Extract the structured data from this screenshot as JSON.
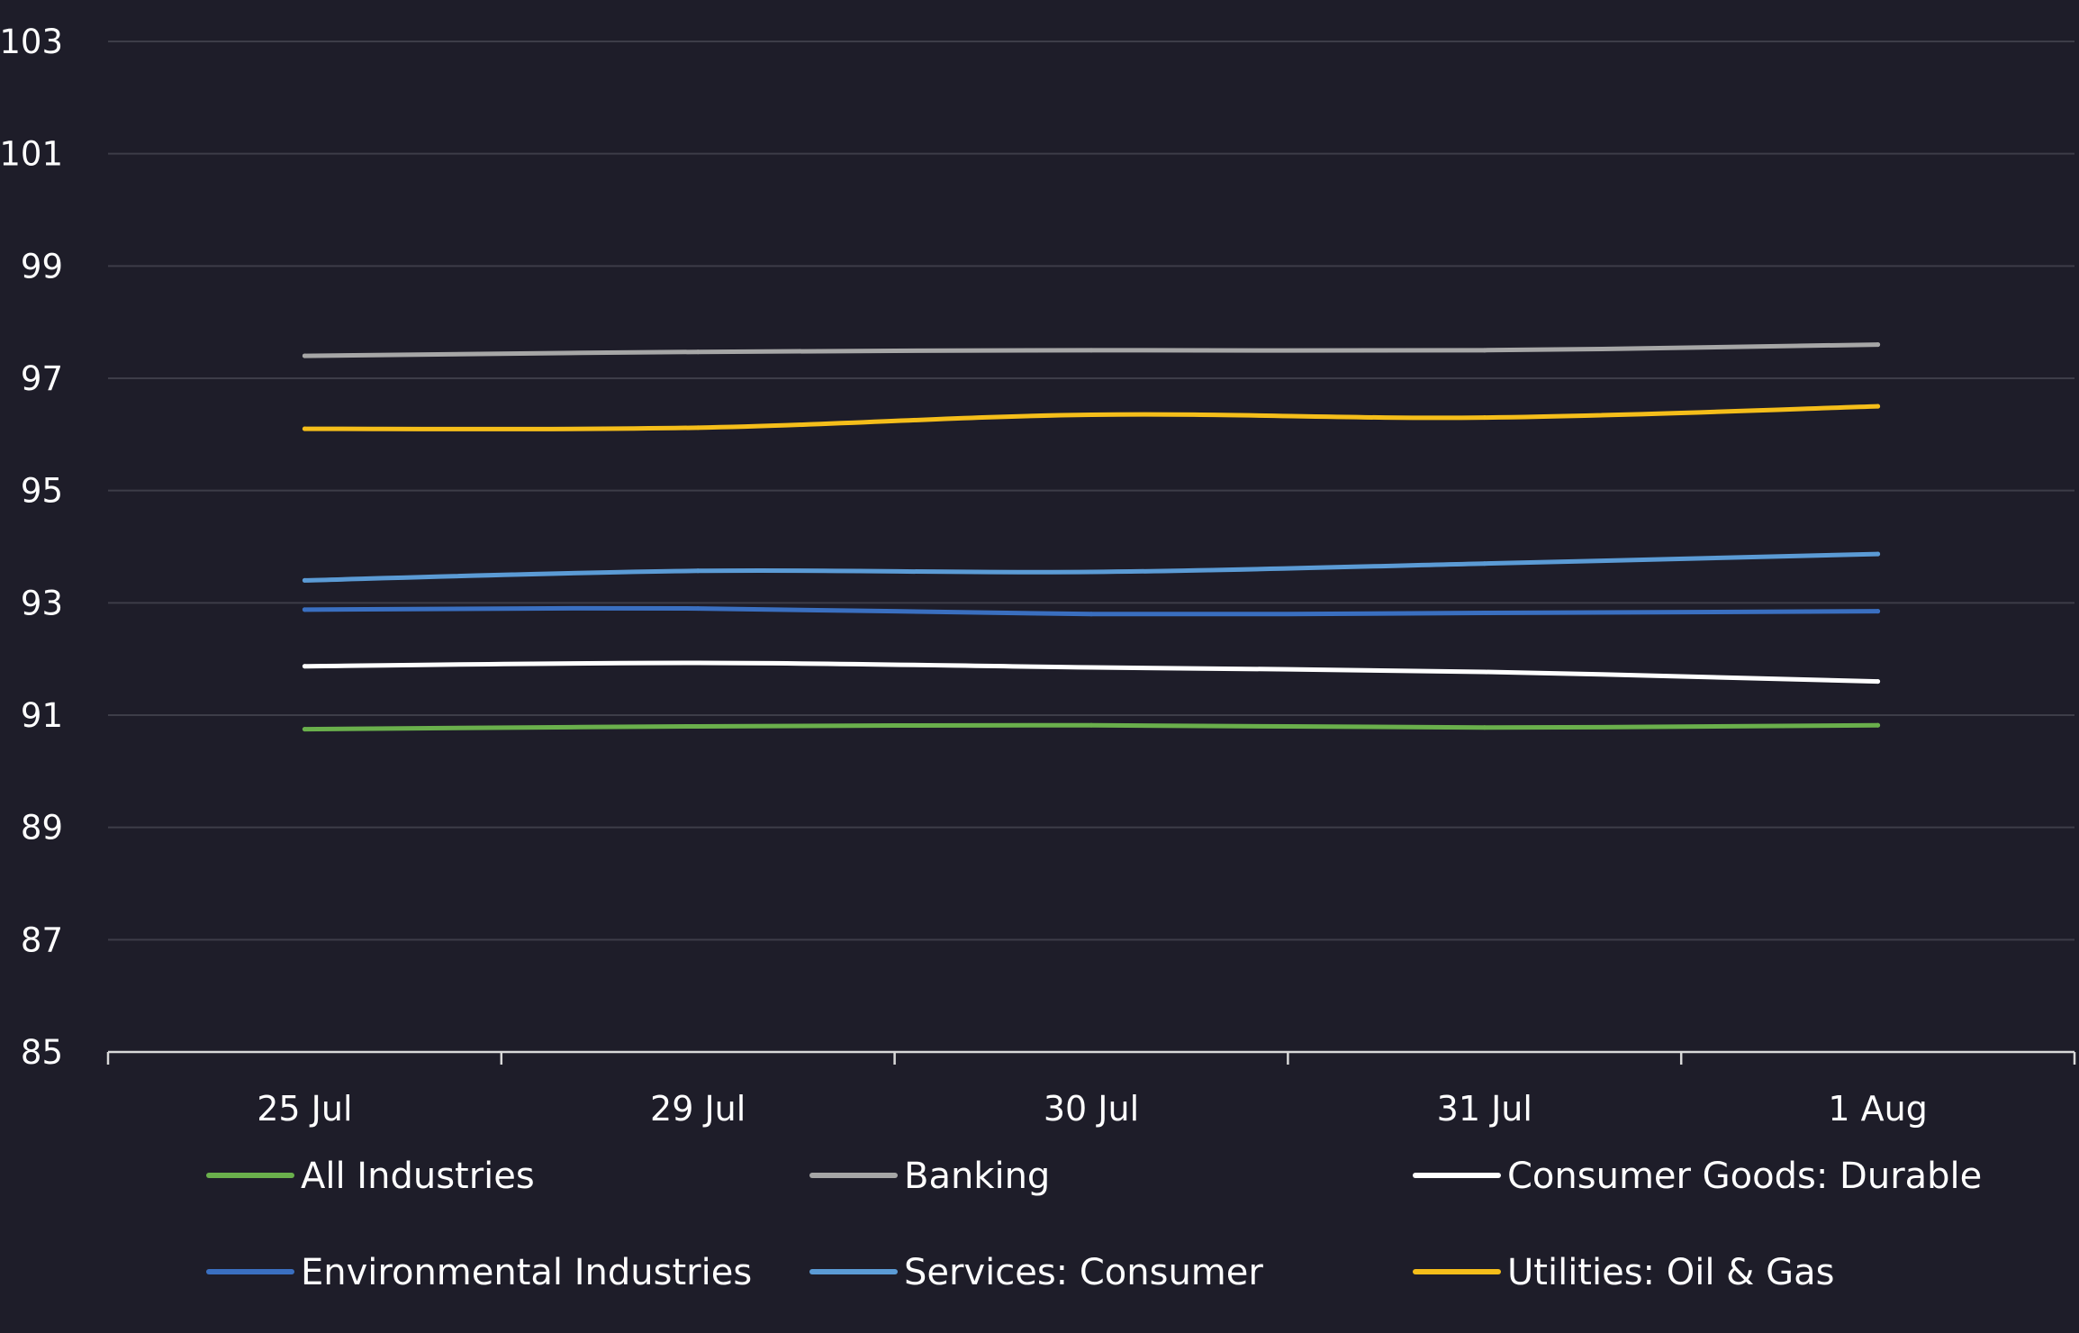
{
  "chart_data": {
    "type": "line",
    "title": "",
    "xlabel": "",
    "ylabel": "",
    "categories": [
      "25 Jul",
      "29 Jul",
      "30 Jul",
      "31 Jul",
      "1 Aug"
    ],
    "ylim": [
      85,
      103
    ],
    "yticks": [
      85,
      87,
      89,
      91,
      93,
      95,
      97,
      99,
      101,
      103
    ],
    "grid": true,
    "legend_position": "bottom",
    "series": [
      {
        "name": "All Industries",
        "color": "#6ab04c",
        "values": [
          90.75,
          90.8,
          90.82,
          90.78,
          90.82
        ]
      },
      {
        "name": "Banking",
        "color": "#a6a6a6",
        "values": [
          97.4,
          97.47,
          97.5,
          97.5,
          97.6
        ]
      },
      {
        "name": "Consumer Goods: Durable",
        "color": "#ffffff",
        "values": [
          91.87,
          91.93,
          91.85,
          91.77,
          91.6
        ]
      },
      {
        "name": "Environmental Industries",
        "color": "#3a6fc0",
        "values": [
          92.88,
          92.9,
          92.8,
          92.82,
          92.85
        ]
      },
      {
        "name": "Services: Consumer",
        "color": "#5b9bd5",
        "values": [
          93.4,
          93.57,
          93.55,
          93.7,
          93.87
        ]
      },
      {
        "name": "Utilities: Oil & Gas",
        "color": "#f5be1a",
        "values": [
          96.1,
          96.12,
          96.35,
          96.3,
          96.5
        ]
      }
    ]
  }
}
